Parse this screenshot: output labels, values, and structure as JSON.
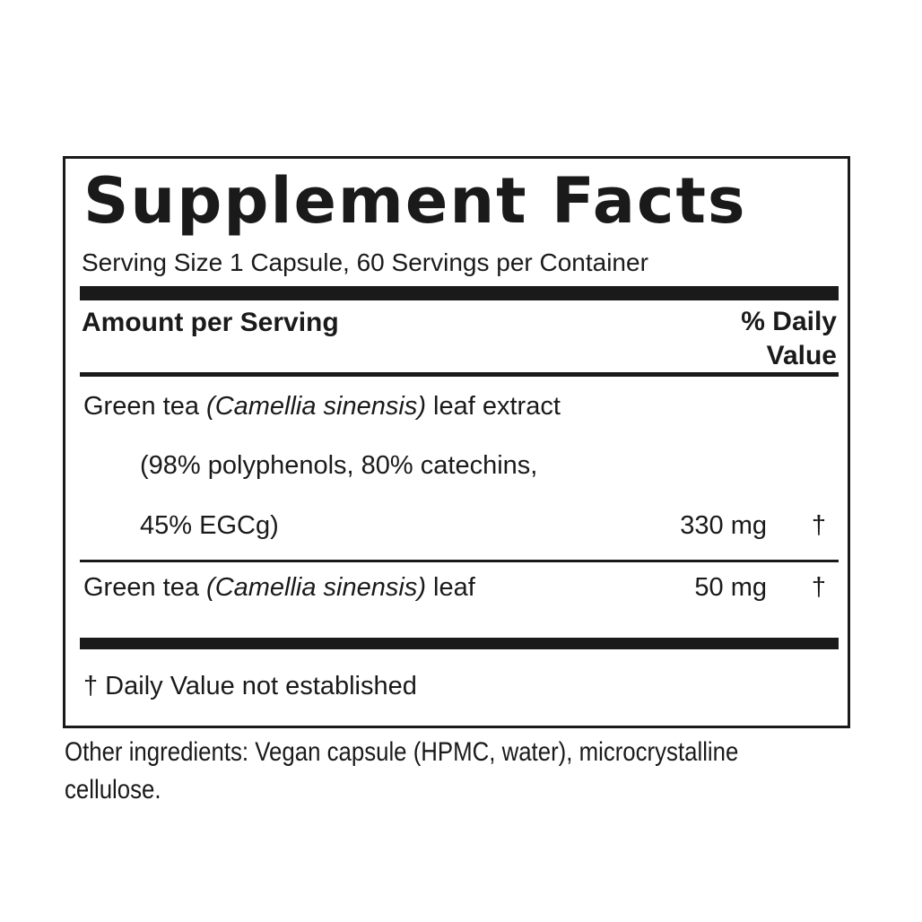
{
  "label": {
    "title": "Supplement Facts",
    "serving": "Serving Size 1 Capsule, 60 Servings per Container",
    "amount_header": "Amount per Serving",
    "dv_header_line1": "% Daily",
    "dv_header_line2": "Value",
    "rows": [
      {
        "name_prefix": "Green tea ",
        "name_italic": "(Camellia sinensis)",
        "name_suffix": " leaf extract",
        "detail_line1": "(98% polyphenols, 80% catechins,",
        "detail_line2": "45% EGCg)",
        "amount": "330 mg",
        "dv": "†"
      },
      {
        "name_prefix": "Green tea ",
        "name_italic": "(Camellia sinensis)",
        "name_suffix": " leaf",
        "amount": "50 mg",
        "dv": "†"
      }
    ],
    "footnote": "† Daily Value not established"
  },
  "other_ingredients": {
    "line1": "Other ingredients: Vegan capsule (HPMC, water), microcrystalline",
    "line2": "cellulose."
  }
}
